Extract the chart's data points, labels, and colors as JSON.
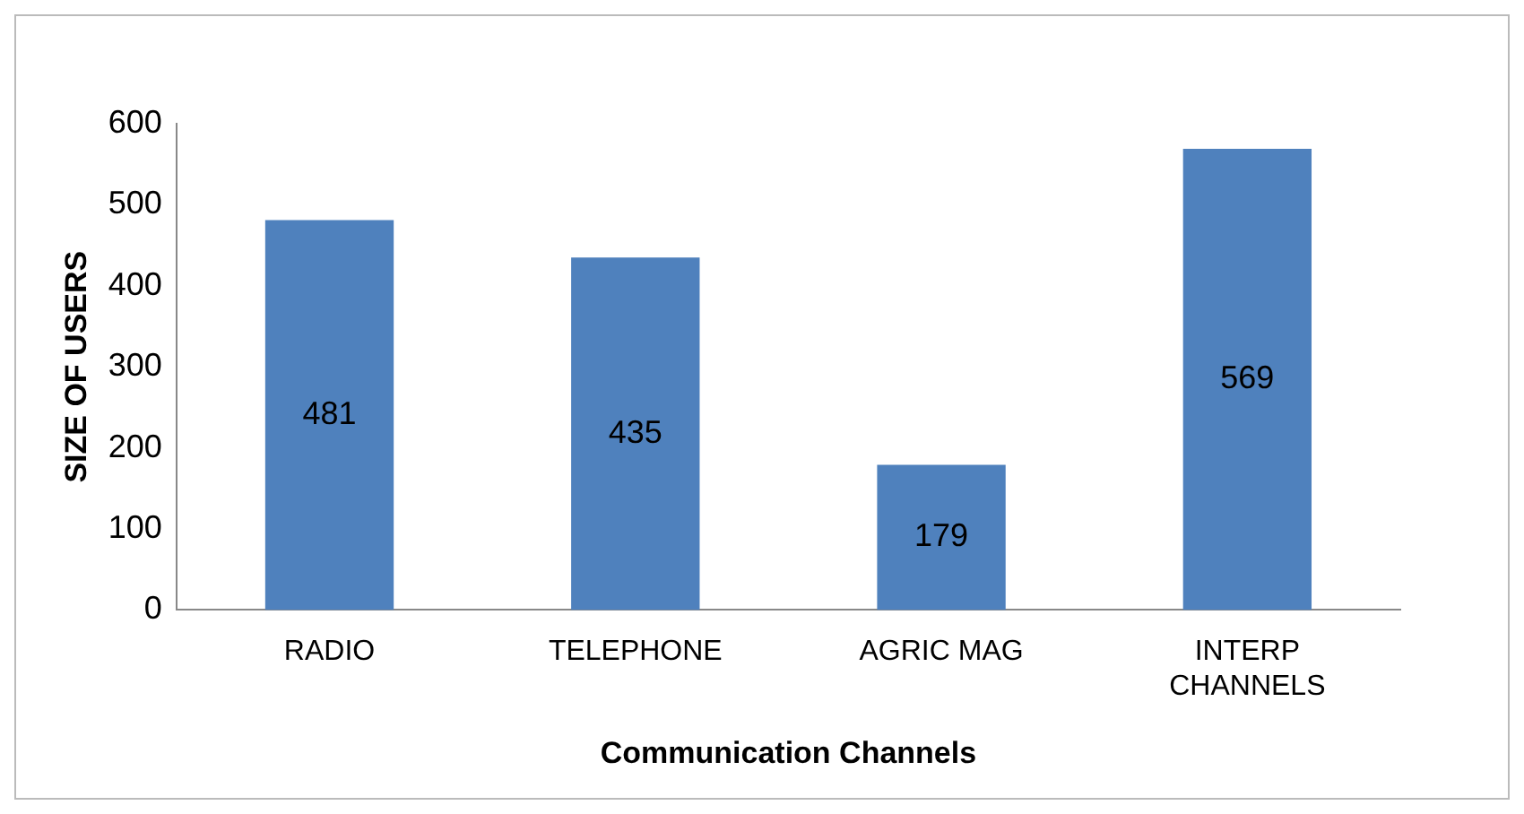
{
  "chart_data": {
    "type": "bar",
    "xlabel": "Communication Channels",
    "ylabel": "SIZE OF USERS",
    "categories": [
      "RADIO",
      "TELEPHONE",
      "AGRIC MAG",
      "INTERP CHANNELS"
    ],
    "values": [
      481,
      435,
      179,
      569
    ],
    "color": "#4f81bd",
    "ylim": [
      0,
      600
    ],
    "yticks": [
      0,
      100,
      200,
      300,
      400,
      500,
      600
    ],
    "grid": false,
    "legend": false,
    "data_labels": true
  }
}
